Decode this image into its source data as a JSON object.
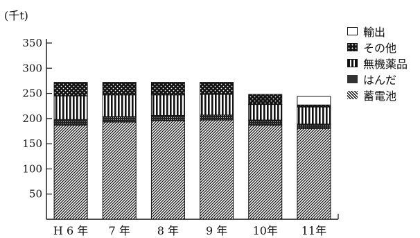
{
  "chart_data": {
    "type": "bar",
    "stacked": true,
    "title": "",
    "unit_label": "(千t)",
    "xlabel": "",
    "ylabel": "",
    "categories": [
      "H 6 年",
      "7 年",
      "8 年",
      "9 年",
      "10年",
      "11年"
    ],
    "series": [
      {
        "name": "蓄電池",
        "pattern": "diagonal-hatch",
        "values": [
          187,
          193,
          196,
          197,
          187,
          180
        ]
      },
      {
        "name": "はんだ",
        "pattern": "dense-dots",
        "values": [
          11,
          11,
          10,
          10,
          10,
          9
        ]
      },
      {
        "name": "無機薬品",
        "pattern": "vertical-stripes",
        "values": [
          47,
          43,
          41,
          41,
          31,
          34
        ]
      },
      {
        "name": "その他",
        "pattern": "white-dots-on-black",
        "values": [
          27,
          25,
          25,
          24,
          20,
          4
        ]
      },
      {
        "name": "輸出",
        "pattern": "white",
        "values": [
          0,
          0,
          0,
          0,
          0,
          17
        ]
      }
    ],
    "legend_order": [
      "輸出",
      "その他",
      "無機薬品",
      "はんだ",
      "蓄電池"
    ],
    "y_ticks": [
      50,
      100,
      150,
      200,
      250,
      300,
      350
    ],
    "ylim": [
      0,
      350
    ],
    "grid": false,
    "legend_position": "right",
    "colors": {
      "ink": "#111111",
      "background": "#ffffff"
    }
  }
}
